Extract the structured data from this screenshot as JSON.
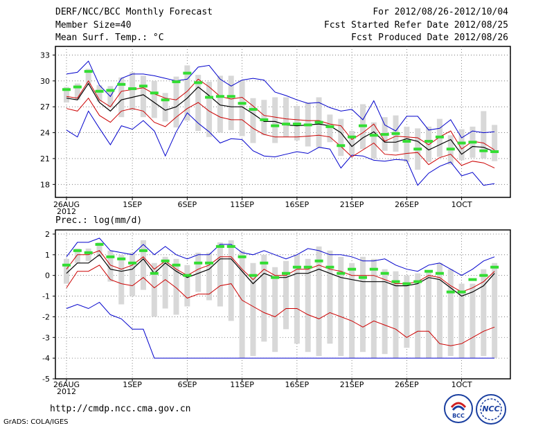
{
  "header": {
    "left_line1": "DERF/NCC/BCC Monthly Forecast",
    "left_line2": "Member Size=40",
    "left_line3": "Mean Surf. Temp.: °C",
    "right_line1": "For 2012/08/26-2012/10/04",
    "right_line2": "Fcst Started Refer Date 2012/08/25",
    "right_line3": "Fcst Produced Date 2012/08/26"
  },
  "footer": {
    "url": "http://cmdp.ncc.cma.gov.cn",
    "grads": "GrADS: COLA/IGES",
    "logo_left": "BCC",
    "logo_right": "NCC"
  },
  "colors": {
    "envelope": "#0000cc",
    "spread": "#cc0000",
    "mean": "#000000",
    "median": "#33dd33",
    "box": "#d8d8d8"
  },
  "chart_data": [
    {
      "type": "line",
      "title": "Mean Surf. Temp.: °C",
      "x_tick_labels": [
        "26AUG",
        "1SEP",
        "6SEP",
        "11SEP",
        "16SEP",
        "21SEP",
        "26SEP",
        "1OCT"
      ],
      "x_tick_days": [
        0,
        6,
        11,
        16,
        21,
        26,
        31,
        36
      ],
      "x_sub_label": "2012",
      "ylim": [
        16.5,
        34
      ],
      "yticks": [
        18,
        21,
        24,
        27,
        30,
        33
      ],
      "days": 40,
      "series": {
        "max": [
          30.8,
          31.0,
          32.3,
          29.5,
          28.2,
          30.3,
          30.8,
          30.8,
          30.6,
          30.3,
          30.0,
          30.2,
          31.6,
          31.8,
          30.2,
          29.4,
          30.1,
          30.3,
          30.1,
          28.7,
          28.3,
          27.8,
          27.4,
          27.5,
          26.9,
          26.5,
          26.7,
          25.5,
          27.7,
          24.9,
          24.2,
          25.9,
          25.9,
          24.3,
          24.5,
          25.5,
          23.4,
          24.2,
          24.0,
          24.1
        ],
        "upper": [
          28.2,
          28.0,
          30.0,
          27.8,
          27.0,
          28.8,
          29.0,
          29.2,
          28.5,
          28.0,
          27.8,
          28.8,
          30.2,
          29.3,
          28.2,
          27.9,
          28.1,
          27.1,
          26.0,
          25.8,
          25.6,
          25.5,
          25.4,
          25.4,
          25.0,
          24.8,
          23.2,
          24.0,
          25.0,
          23.0,
          23.6,
          23.5,
          23.4,
          22.6,
          23.5,
          24.2,
          22.1,
          23.0,
          22.8,
          22.0
        ],
        "mean": [
          28.0,
          27.8,
          29.7,
          27.5,
          26.5,
          27.8,
          28.1,
          28.4,
          27.5,
          26.6,
          27.0,
          28.0,
          29.3,
          28.3,
          27.2,
          27.0,
          27.0,
          26.2,
          25.3,
          25.3,
          24.9,
          24.8,
          24.9,
          25.0,
          24.8,
          24.0,
          22.4,
          23.4,
          24.1,
          22.9,
          22.9,
          23.3,
          23.0,
          22.0,
          22.6,
          23.2,
          21.5,
          22.4,
          22.3,
          21.8
        ],
        "lower": [
          27.3,
          27.1,
          29.0,
          26.8,
          25.8,
          27.2,
          27.3,
          27.5,
          26.8,
          25.8,
          26.4,
          27.4,
          28.5,
          27.6,
          26.5,
          26.3,
          26.3,
          25.5,
          24.7,
          24.6,
          24.3,
          24.2,
          24.3,
          24.4,
          24.2,
          23.4,
          21.7,
          22.9,
          23.6,
          22.3,
          22.3,
          22.8,
          22.4,
          21.4,
          22.0,
          22.6,
          20.9,
          21.7,
          21.6,
          21.2
        ],
        "lower2": [
          26.8,
          26.5,
          28.0,
          26.0,
          25.2,
          26.5,
          26.8,
          26.5,
          25.2,
          24.7,
          25.8,
          26.8,
          27.5,
          26.5,
          25.8,
          25.5,
          25.5,
          24.5,
          23.8,
          23.5,
          23.5,
          23.5,
          23.6,
          23.7,
          23.5,
          22.4,
          21.2,
          22.0,
          22.8,
          21.5,
          21.4,
          21.6,
          21.7,
          20.3,
          21.1,
          21.5,
          20.2,
          20.7,
          20.5,
          19.9
        ],
        "min": [
          24.3,
          23.5,
          26.5,
          24.5,
          22.6,
          24.8,
          24.4,
          25.4,
          24.2,
          21.3,
          24.1,
          26.3,
          25.1,
          24.1,
          22.8,
          23.3,
          23.2,
          21.9,
          21.3,
          21.2,
          21.5,
          21.8,
          21.6,
          22.3,
          22.1,
          19.9,
          21.4,
          21.3,
          20.8,
          20.7,
          20.9,
          20.8,
          17.9,
          19.3,
          20.1,
          20.6,
          19.0,
          19.4,
          17.9,
          18.1
        ],
        "median": [
          29.0,
          29.3,
          31.1,
          28.8,
          28.9,
          29.6,
          29.1,
          29.4,
          28.6,
          27.8,
          29.9,
          30.9,
          29.8,
          28.1,
          28.2,
          28.2,
          27.4,
          26.7,
          25.5,
          24.8,
          25.0,
          25.0,
          24.9,
          25.2,
          24.7,
          22.5,
          23.5,
          24.8,
          23.7,
          23.8,
          23.9,
          23.0,
          22.1,
          23.0,
          23.5,
          22.1,
          22.8,
          22.9,
          21.9,
          21.8
        ],
        "box_top": [
          29.3,
          29.7,
          31.4,
          29.5,
          29.4,
          30.4,
          31.0,
          30.6,
          30.0,
          28.6,
          30.5,
          31.8,
          30.7,
          29.9,
          30.6,
          30.6,
          30.1,
          28.0,
          27.8,
          28.1,
          28.1,
          27.1,
          27.5,
          28.1,
          26.1,
          25.6,
          24.2,
          27.3,
          25.2,
          25.8,
          26.0,
          24.7,
          24.5,
          24.7,
          25.6,
          23.7,
          24.4,
          24.7,
          26.5,
          24.9
        ],
        "box_bottom": [
          27.5,
          27.8,
          29.5,
          27.6,
          26.9,
          25.8,
          26.6,
          25.8,
          25.7,
          25.3,
          24.6,
          25.4,
          24.2,
          23.5,
          24.0,
          24.3,
          23.6,
          22.8,
          23.7,
          22.8,
          23.5,
          23.1,
          22.4,
          22.3,
          22.9,
          21.3,
          21.4,
          22.1,
          21.0,
          21.9,
          21.8,
          20.6,
          19.7,
          20.6,
          21.2,
          20.3,
          20.8,
          21.1,
          21.0,
          20.7
        ]
      }
    },
    {
      "type": "line",
      "title": "Prec.: log(mm/d)",
      "x_tick_labels": [
        "26AUG",
        "1SEP",
        "6SEP",
        "11SEP",
        "16SEP",
        "21SEP",
        "26SEP",
        "1OCT"
      ],
      "x_tick_days": [
        0,
        6,
        11,
        16,
        21,
        26,
        31,
        36
      ],
      "x_sub_label": "2012",
      "ylim": [
        -5,
        2.2
      ],
      "yticks": [
        -5,
        -4,
        -3,
        -2,
        -1,
        0,
        1,
        2
      ],
      "days": 40,
      "series": {
        "max": [
          0.9,
          1.6,
          1.6,
          1.8,
          1.2,
          1.1,
          1.0,
          1.5,
          1.0,
          1.4,
          1.0,
          0.8,
          1.0,
          1.0,
          1.5,
          1.5,
          1.1,
          1.0,
          1.2,
          1.0,
          0.8,
          1.0,
          1.3,
          1.2,
          1.0,
          1.0,
          0.9,
          0.7,
          0.7,
          0.8,
          0.5,
          0.3,
          0.2,
          0.5,
          0.6,
          0.3,
          0.0,
          0.3,
          0.7,
          0.9
        ],
        "upper": [
          0.3,
          1.0,
          1.0,
          1.2,
          0.5,
          0.3,
          0.5,
          0.9,
          0.3,
          0.7,
          0.3,
          0.0,
          0.3,
          0.5,
          0.9,
          0.9,
          0.3,
          -0.2,
          0.3,
          0.0,
          0.0,
          0.3,
          0.3,
          0.5,
          0.3,
          0.2,
          0.0,
          0.0,
          0.0,
          -0.2,
          -0.4,
          -0.4,
          -0.3,
          0.0,
          -0.1,
          -0.5,
          -0.8,
          -0.6,
          -0.3,
          0.2
        ],
        "mean": [
          0.1,
          0.6,
          0.6,
          1.0,
          0.3,
          0.2,
          0.3,
          0.8,
          0.1,
          0.6,
          0.2,
          -0.1,
          0.1,
          0.3,
          0.8,
          0.8,
          0.2,
          -0.4,
          0.1,
          -0.1,
          -0.1,
          0.1,
          0.1,
          0.3,
          0.1,
          -0.1,
          -0.2,
          -0.3,
          -0.3,
          -0.3,
          -0.5,
          -0.5,
          -0.4,
          -0.1,
          -0.2,
          -0.6,
          -1.0,
          -0.8,
          -0.5,
          0.1
        ],
        "lower": [
          -0.5,
          0.3,
          0.3,
          0.6,
          -0.1,
          -0.3,
          -0.4,
          0.0,
          -0.3,
          -0.1,
          -0.5,
          -1.0,
          -0.8,
          -0.8,
          -0.4,
          -0.3,
          -0.7,
          -1.2,
          -0.8,
          -1.1,
          -1.3,
          -0.9,
          -0.8,
          -0.7,
          -0.8,
          -0.9,
          -1.0,
          -1.2,
          -1.1,
          -1.3,
          -1.5,
          -1.6,
          -1.5,
          -1.1,
          -1.2,
          -1.5,
          -1.2,
          -1.1,
          -0.7,
          -0.4
        ],
        "lower2": [
          -0.6,
          0.2,
          0.2,
          0.5,
          -0.2,
          -0.4,
          -0.5,
          -0.1,
          -0.6,
          -0.2,
          -0.6,
          -1.1,
          -0.9,
          -0.9,
          -0.5,
          -0.4,
          -1.2,
          -1.5,
          -1.8,
          -2.0,
          -1.6,
          -1.6,
          -1.9,
          -2.1,
          -1.8,
          -2.0,
          -2.2,
          -2.5,
          -2.2,
          -2.4,
          -2.6,
          -3.0,
          -2.7,
          -2.7,
          -3.3,
          -3.4,
          -3.3,
          -3.0,
          -2.7,
          -2.5
        ],
        "min": [
          -1.6,
          -1.4,
          -1.6,
          -1.3,
          -1.9,
          -2.1,
          -2.6,
          -2.6,
          -4.0,
          -4.0,
          -4.0,
          -4.0,
          -4.0,
          -4.0,
          -4.0,
          -4.0,
          -4.0,
          -4.0,
          -4.0,
          -4.0,
          -4.0,
          -4.0,
          -4.0,
          -4.0,
          -4.0,
          -4.0,
          -4.0,
          -4.0,
          -4.0,
          -4.0,
          -4.0,
          -4.0,
          -4.0,
          -4.0,
          -4.0,
          -4.0,
          -4.0,
          -4.0,
          -4.0,
          -4.0
        ],
        "median": [
          0.5,
          1.2,
          1.1,
          1.5,
          0.9,
          0.8,
          0.6,
          1.2,
          0.1,
          0.7,
          0.5,
          0.0,
          0.6,
          0.6,
          1.4,
          1.4,
          0.9,
          0.0,
          0.6,
          -0.1,
          0.1,
          0.4,
          0.4,
          0.7,
          0.4,
          0.1,
          0.3,
          -0.1,
          0.3,
          0.1,
          -0.3,
          -0.4,
          -0.3,
          0.2,
          0.1,
          -0.8,
          -0.8,
          -0.2,
          0.0,
          0.4
        ],
        "box_top": [
          0.8,
          1.3,
          1.3,
          1.6,
          1.2,
          1.0,
          1.1,
          1.7,
          0.6,
          0.9,
          0.8,
          0.5,
          1.1,
          1.1,
          1.6,
          1.7,
          1.2,
          0.6,
          1.0,
          0.4,
          0.7,
          1.0,
          0.8,
          1.4,
          1.2,
          0.9,
          0.6,
          0.9,
          0.8,
          0.3,
          0.2,
          0.0,
          0.1,
          0.2,
          0.6,
          0.3,
          -0.4,
          -0.4,
          0.3,
          0.6
        ],
        "box_bottom": [
          -0.4,
          0.6,
          0.7,
          0.9,
          -0.3,
          -1.4,
          -1.0,
          -0.7,
          -2.0,
          -1.6,
          -1.9,
          -1.5,
          -0.8,
          -1.2,
          -1.5,
          -2.2,
          -4.0,
          -3.9,
          -3.2,
          -3.7,
          -2.6,
          -3.3,
          -3.7,
          -3.9,
          -3.3,
          -3.9,
          -4.0,
          -3.7,
          -4.0,
          -3.8,
          -4.0,
          -3.5,
          -4.0,
          -4.0,
          -4.0,
          -3.9,
          -4.0,
          -4.0,
          -3.9,
          -4.0
        ]
      }
    }
  ]
}
